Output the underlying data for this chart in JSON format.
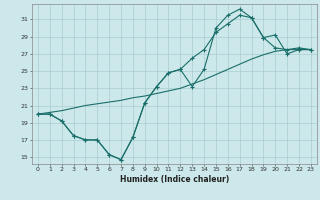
{
  "xlabel": "Humidex (Indice chaleur)",
  "bg_color": "#cce8ea",
  "grid_color": "#aacdd0",
  "line_color": "#1a6e6a",
  "x_ticks": [
    0,
    1,
    2,
    3,
    4,
    5,
    6,
    7,
    8,
    9,
    10,
    11,
    12,
    13,
    14,
    15,
    16,
    17,
    18,
    19,
    20,
    21,
    22,
    23
  ],
  "y_ticks": [
    15,
    17,
    19,
    21,
    23,
    25,
    27,
    29,
    31
  ],
  "xlim": [
    -0.5,
    23.5
  ],
  "ylim": [
    14.2,
    32.8
  ],
  "line_low_x": [
    0,
    1,
    2,
    3,
    4,
    5,
    6,
    7,
    8,
    9,
    10,
    11,
    12,
    13,
    14,
    15,
    16,
    17,
    18,
    19,
    20,
    21,
    22,
    23
  ],
  "line_low_y": [
    20.0,
    20.0,
    19.2,
    17.5,
    17.0,
    17.0,
    15.3,
    14.7,
    17.3,
    21.3,
    23.2,
    24.8,
    25.2,
    23.2,
    25.2,
    30.0,
    31.5,
    32.2,
    31.2,
    28.9,
    27.7,
    27.5,
    27.7,
    27.5
  ],
  "line_high_x": [
    0,
    1,
    2,
    3,
    4,
    5,
    6,
    7,
    8,
    9,
    10,
    11,
    12,
    13,
    14,
    15,
    16,
    17,
    18,
    19,
    20,
    21,
    22,
    23
  ],
  "line_high_y": [
    20.0,
    20.0,
    19.2,
    17.5,
    17.0,
    17.0,
    15.3,
    14.7,
    17.3,
    21.3,
    23.2,
    24.8,
    25.2,
    26.5,
    27.5,
    29.5,
    30.5,
    31.5,
    31.2,
    28.9,
    29.2,
    27.0,
    27.5,
    27.5
  ],
  "line_diag_x": [
    0,
    1,
    2,
    3,
    4,
    5,
    6,
    7,
    8,
    9,
    10,
    11,
    12,
    13,
    14,
    15,
    16,
    17,
    18,
    19,
    20,
    21,
    22,
    23
  ],
  "line_diag_y": [
    20.0,
    20.2,
    20.4,
    20.7,
    21.0,
    21.2,
    21.4,
    21.6,
    21.9,
    22.1,
    22.4,
    22.7,
    23.0,
    23.5,
    24.0,
    24.6,
    25.2,
    25.8,
    26.4,
    26.9,
    27.3,
    27.5,
    27.5,
    27.5
  ]
}
